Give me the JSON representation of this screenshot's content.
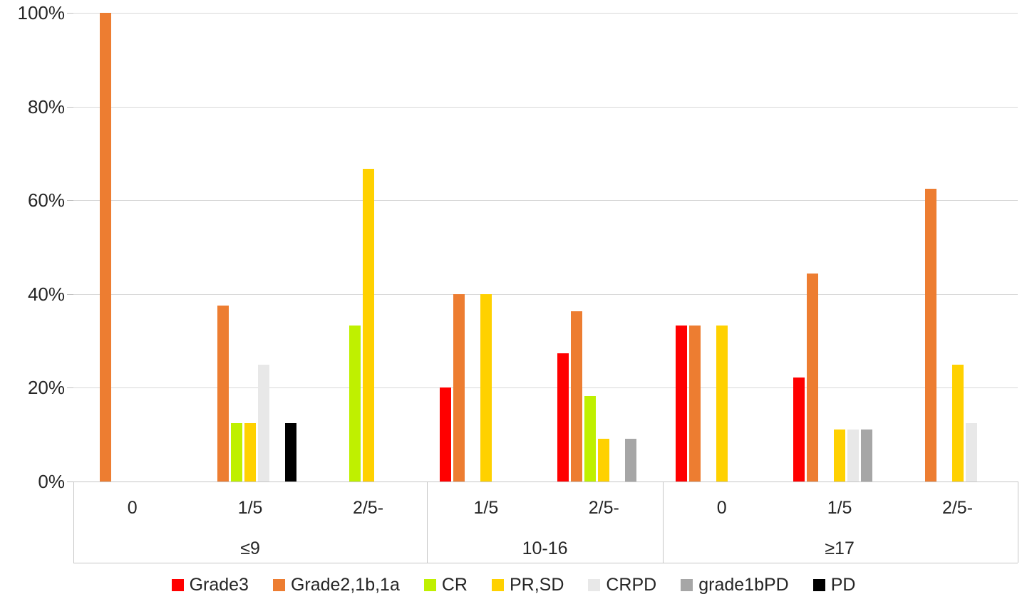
{
  "chart_data": {
    "type": "bar",
    "title": "",
    "xlabel": "",
    "ylabel": "",
    "ylim": [
      0,
      100
    ],
    "y_tick_values": [
      0,
      20,
      40,
      60,
      80,
      100
    ],
    "y_tick_labels": [
      "0%",
      "20%",
      "40%",
      "60%",
      "80%",
      "100%"
    ],
    "grid": true,
    "legend_position": "bottom",
    "series": [
      {
        "name": "Grade3",
        "color": "#FF0000"
      },
      {
        "name": "Grade2,1b,1a",
        "color": "#ED7D31"
      },
      {
        "name": "CR",
        "color": "#BFF000"
      },
      {
        "name": "PR,SD",
        "color": "#FFD100"
      },
      {
        "name": "CRPD",
        "color": "#E8E8E8"
      },
      {
        "name": "grade1bPD",
        "color": "#A6A6A6"
      },
      {
        "name": "PD",
        "color": "#000000"
      }
    ],
    "groups": [
      {
        "label": "≤9",
        "subcategories": [
          {
            "label": "0",
            "values": [
              null,
              100,
              null,
              null,
              null,
              null,
              null
            ]
          },
          {
            "label": "1/5",
            "values": [
              null,
              37.5,
              12.5,
              12.5,
              25,
              null,
              12.5
            ]
          },
          {
            "label": "2/5-",
            "values": [
              null,
              null,
              33.3,
              66.7,
              null,
              null,
              null
            ]
          }
        ]
      },
      {
        "label": "10-16",
        "subcategories": [
          {
            "label": "1/5",
            "values": [
              20,
              40,
              null,
              40,
              null,
              null,
              null
            ]
          },
          {
            "label": "2/5-",
            "values": [
              27.3,
              36.4,
              18.2,
              9.1,
              null,
              9.1,
              null
            ]
          }
        ]
      },
      {
        "label": "≥17",
        "subcategories": [
          {
            "label": "0",
            "values": [
              33.3,
              33.3,
              null,
              33.3,
              null,
              null,
              null
            ]
          },
          {
            "label": "1/5",
            "values": [
              22.2,
              44.4,
              null,
              11.1,
              11.1,
              11.1,
              null
            ]
          },
          {
            "label": "2/5-",
            "values": [
              null,
              62.5,
              null,
              25,
              12.5,
              null,
              null
            ]
          }
        ]
      }
    ]
  }
}
